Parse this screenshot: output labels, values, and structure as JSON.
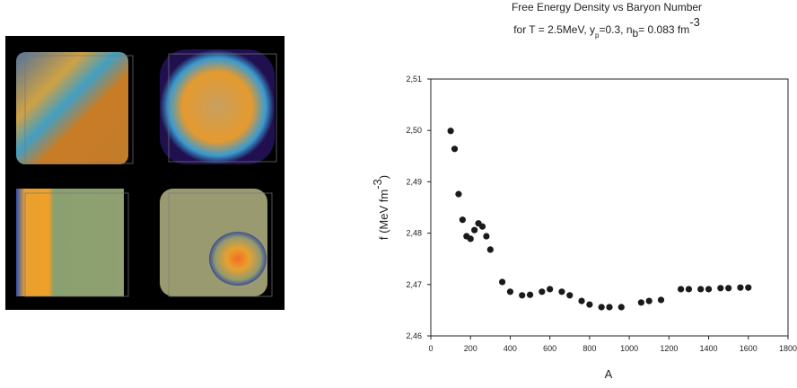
{
  "chart_data": {
    "type": "scatter",
    "title": "Free Energy Density vs Baryon Number",
    "subtitle_parts": [
      "for T = 2.5MeV, y",
      "p",
      "=0.3, n",
      "b",
      "= 0.083 fm",
      "-3"
    ],
    "xlabel": "A",
    "ylabel_parts": [
      "f (MeV fm",
      "-3",
      ")"
    ],
    "color": "#1a1a1a",
    "x": [
      100,
      120,
      140,
      160,
      180,
      200,
      220,
      240,
      260,
      280,
      300,
      360,
      400,
      460,
      500,
      560,
      600,
      660,
      700,
      760,
      800,
      860,
      900,
      960,
      1060,
      1100,
      1160,
      1260,
      1300,
      1360,
      1400,
      1460,
      1500,
      1560,
      1600
    ],
    "values": [
      2.4999,
      2.4964,
      2.4876,
      2.4826,
      2.4794,
      2.4789,
      2.4806,
      2.4819,
      2.4813,
      2.4794,
      2.4768,
      2.4705,
      2.4686,
      2.4679,
      2.468,
      2.4686,
      2.4691,
      2.4686,
      2.4679,
      2.4668,
      2.4661,
      2.4656,
      2.4656,
      2.4656,
      2.4665,
      2.4668,
      2.467,
      2.4691,
      2.4691,
      2.4691,
      2.4691,
      2.4693,
      2.4693,
      2.4694,
      2.4694
    ],
    "xlim": [
      0,
      1800
    ],
    "xticks": [
      0,
      200,
      400,
      600,
      800,
      1000,
      1200,
      1400,
      1600,
      1800
    ],
    "ylim": [
      2.46,
      2.51
    ],
    "yticks": [
      {
        "value": 2.46,
        "label": "2,46"
      },
      {
        "value": 2.47,
        "label": "2,47"
      },
      {
        "value": 2.48,
        "label": "2,48"
      },
      {
        "value": 2.49,
        "label": "2,49"
      },
      {
        "value": 2.5,
        "label": "2,50"
      },
      {
        "value": 2.51,
        "label": "2,51"
      }
    ]
  }
}
